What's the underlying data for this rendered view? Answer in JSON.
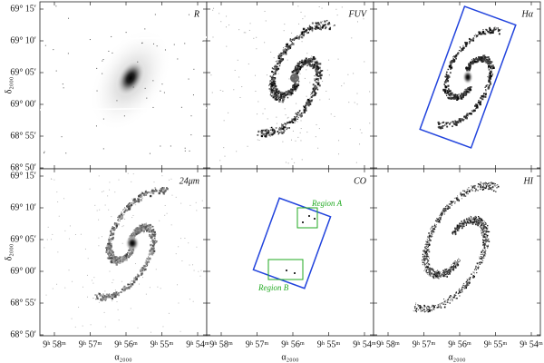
{
  "panels": [
    {
      "label": "R"
    },
    {
      "label": "FUV"
    },
    {
      "label": "Hα"
    },
    {
      "label": "24μm"
    },
    {
      "label": "CO"
    },
    {
      "label": "HI"
    }
  ],
  "regions": [
    "Region A",
    "Region B"
  ],
  "y_axis": {
    "label": "δ₂₀₀₀",
    "ticks": [
      "69° 15′",
      "69° 10′",
      "69° 05′",
      "69° 00′",
      "68° 55′",
      "68° 50′"
    ]
  },
  "x_axis": {
    "label": "α₂₀₀₀",
    "ticks": [
      "9ʰ 58ᵐ",
      "9ʰ 57ᵐ",
      "9ʰ 56ᵐ",
      "9ʰ 55ᵐ",
      "9ʰ 54ᵐ"
    ]
  }
}
